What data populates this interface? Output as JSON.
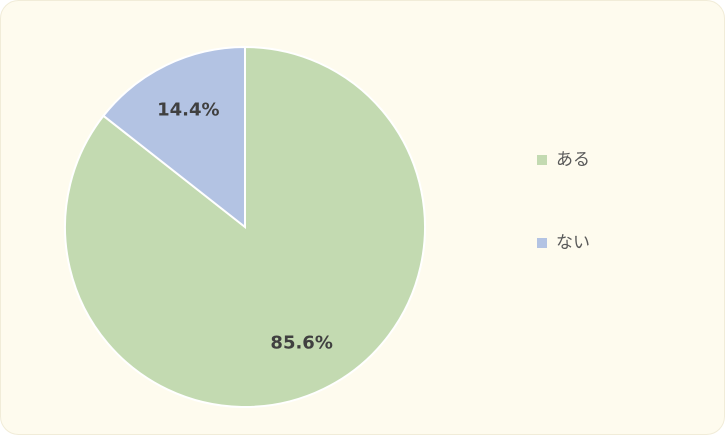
{
  "chart_data": {
    "type": "pie",
    "categories": [
      "ある",
      "ない"
    ],
    "values": [
      85.6,
      14.4
    ],
    "value_labels": [
      "85.6%",
      "14.4%"
    ],
    "colors": [
      "#c3dab1",
      "#b3c3e3"
    ],
    "legend": "right"
  }
}
